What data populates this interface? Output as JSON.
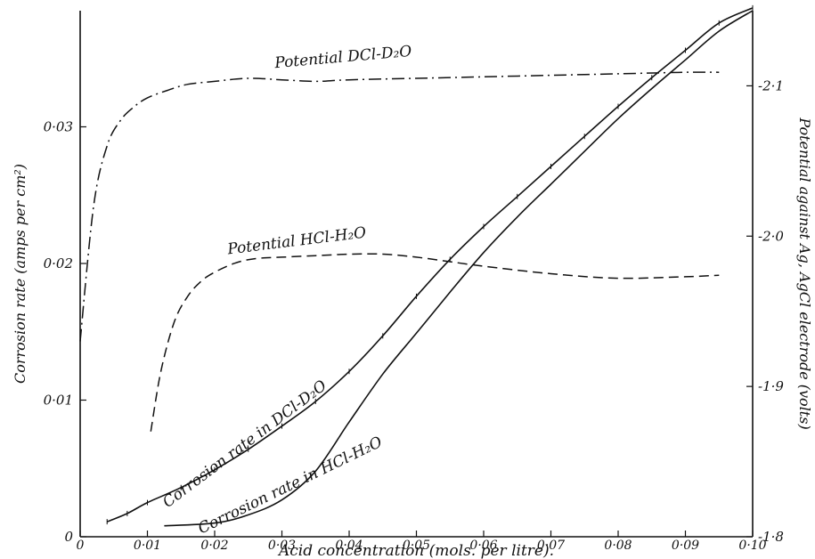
{
  "chart_data": {
    "type": "line",
    "title": "",
    "xlabel": "Acid concentration (mols. per litre).",
    "ylabel_left": "Corrosion rate (amps per cm²)",
    "ylabel_right": "Potential against Ag, AgCl electrode (volts)",
    "xlim": [
      0,
      0.1
    ],
    "ylim_left": [
      0,
      0.0385
    ],
    "ylim_right": [
      -1.8,
      -2.15
    ],
    "x_ticks": [
      "0",
      "0·01",
      "0·02",
      "0·03",
      "0·04",
      "0·05",
      "0·06",
      "0·07",
      "0·08",
      "0·09",
      "0·10"
    ],
    "y_left_ticks": [
      "0",
      "0·01",
      "0·02",
      "0·03"
    ],
    "y_right_ticks": [
      "-1·8",
      "-1·9",
      "-2·0",
      "-2·1"
    ],
    "grid": false,
    "series": [
      {
        "name": "Potential DCl-D₂O",
        "axis": "right",
        "style": "dash-dot",
        "x": [
          0.0,
          0.002,
          0.004,
          0.006,
          0.008,
          0.01,
          0.013,
          0.016,
          0.02,
          0.025,
          0.03,
          0.035,
          0.04,
          0.05,
          0.06,
          0.07,
          0.08,
          0.09,
          0.095
        ],
        "y": [
          -1.93,
          -2.02,
          -2.06,
          -2.077,
          -2.086,
          -2.092,
          -2.097,
          -2.101,
          -2.103,
          -2.105,
          -2.104,
          -2.103,
          -2.104,
          -2.105,
          -2.106,
          -2.107,
          -2.108,
          -2.109,
          -2.109
        ]
      },
      {
        "name": "Potential HCl-H₂O",
        "axis": "right",
        "style": "dash",
        "x": [
          0.0105,
          0.012,
          0.014,
          0.016,
          0.018,
          0.02,
          0.023,
          0.026,
          0.03,
          0.035,
          0.04,
          0.045,
          0.05,
          0.055,
          0.06,
          0.07,
          0.08,
          0.09,
          0.095
        ],
        "y": [
          -1.87,
          -1.91,
          -1.943,
          -1.96,
          -1.97,
          -1.976,
          -1.982,
          -1.985,
          -1.986,
          -1.987,
          -1.988,
          -1.988,
          -1.986,
          -1.983,
          -1.98,
          -1.975,
          -1.972,
          -1.973,
          -1.974
        ]
      },
      {
        "name": "Corrosion rate in DCl-D₂O",
        "axis": "left",
        "style": "solid-ticked",
        "x": [
          0.004,
          0.007,
          0.01,
          0.015,
          0.02,
          0.025,
          0.03,
          0.035,
          0.04,
          0.045,
          0.05,
          0.055,
          0.06,
          0.065,
          0.07,
          0.075,
          0.08,
          0.085,
          0.09,
          0.095,
          0.1
        ],
        "y": [
          0.0011,
          0.0017,
          0.0025,
          0.0036,
          0.0049,
          0.0064,
          0.0081,
          0.0099,
          0.0121,
          0.0147,
          0.0176,
          0.0203,
          0.0227,
          0.0249,
          0.0271,
          0.0293,
          0.0315,
          0.0336,
          0.0356,
          0.0376,
          0.0387
        ]
      },
      {
        "name": "Corrosion rate in HCl-H₂O",
        "axis": "left",
        "style": "solid",
        "x": [
          0.0125,
          0.02,
          0.025,
          0.03,
          0.035,
          0.04,
          0.045,
          0.05,
          0.055,
          0.06,
          0.065,
          0.07,
          0.075,
          0.08,
          0.085,
          0.09,
          0.095,
          0.1
        ],
        "y": [
          0.0008,
          0.001,
          0.0016,
          0.0027,
          0.0048,
          0.0084,
          0.0119,
          0.0149,
          0.0179,
          0.0208,
          0.0234,
          0.0258,
          0.0282,
          0.0306,
          0.0328,
          0.0349,
          0.037,
          0.0385
        ]
      }
    ],
    "annotations": [
      {
        "text": "Potential DCl-D₂O",
        "x": 0.029,
        "y_right": -2.112,
        "rotate": -5
      },
      {
        "text": "Potential HCl-H₂O",
        "x": 0.022,
        "y_right": -1.988,
        "rotate": -7
      },
      {
        "text": "Corrosion rate in DCl-D₂O",
        "x": 0.013,
        "y_left": 0.0021,
        "rotate": -37
      },
      {
        "text": "Corrosion rate in HCl-H₂O",
        "x": 0.018,
        "y_left": 0.0002,
        "rotate": -26
      }
    ]
  }
}
